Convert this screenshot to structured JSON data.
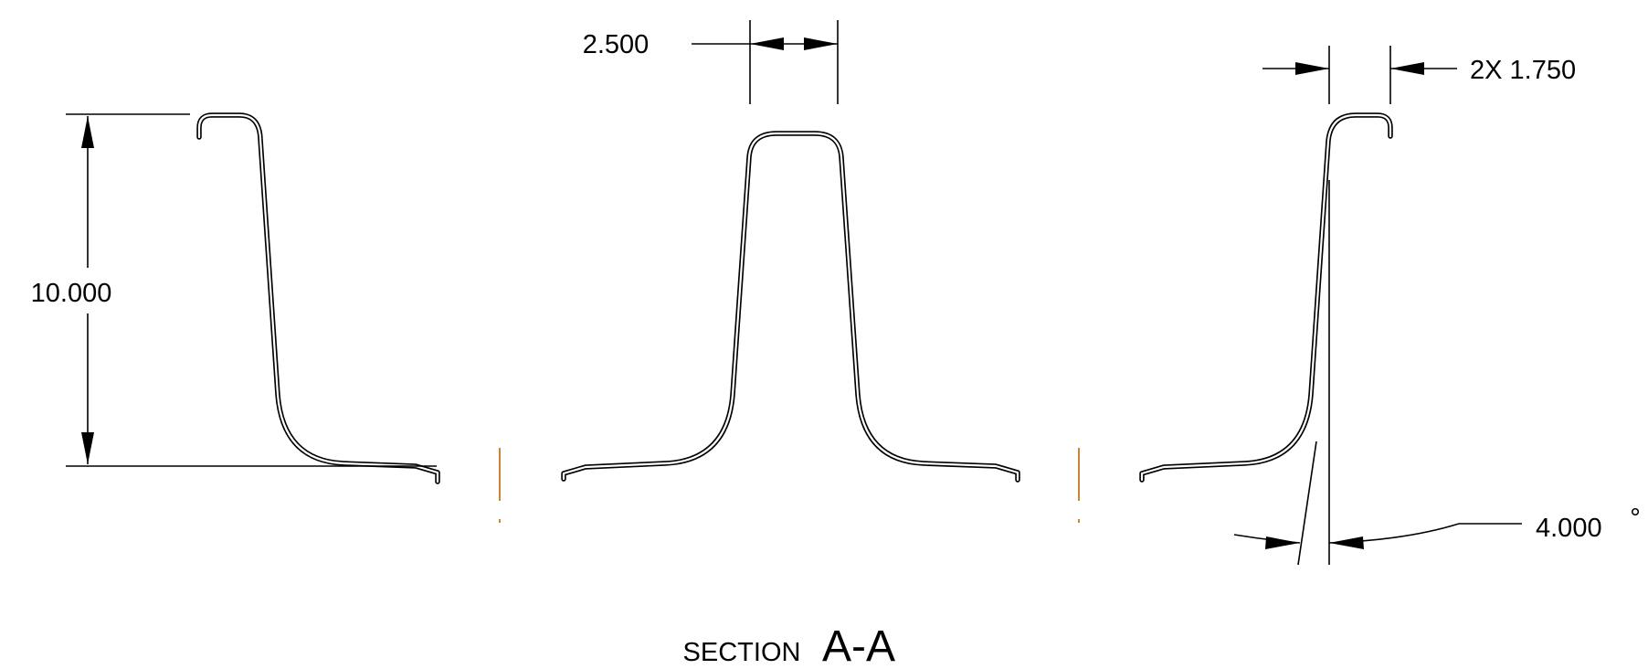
{
  "dimensions": {
    "height": "10.000",
    "top_width": "2.500",
    "flange": "2X 1.750",
    "angle": "4.000",
    "degree_symbol": "°"
  },
  "section_label": {
    "prefix": "SECTION",
    "name": "A-A"
  },
  "colors": {
    "line": "#000000",
    "center_mark": "#c07820",
    "background": "#ffffff"
  }
}
